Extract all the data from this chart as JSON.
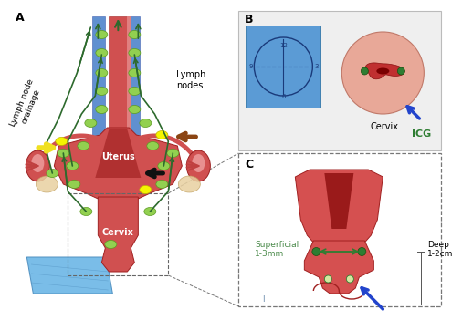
{
  "bg_color": "#ffffff",
  "blue_sq_color": "#5b9bd5",
  "cervix_outer_color": "#e8a898",
  "cervix_inner_color": "#c84040",
  "uterus_red": "#d05050",
  "uterus_dark_red": "#c03030",
  "uterus_light_red": "#e08080",
  "lymph_green": "#92d050",
  "lymph_green_dark": "#5a9a20",
  "arrow_green": "#2d6a2d",
  "arrow_yellow": "#f0e020",
  "arrow_brown": "#8b4513",
  "arrow_black": "#111111",
  "needle_blue": "#2244cc",
  "text_black": "#000000",
  "icg_green": "#2e7d32",
  "superficial_green": "#4a8a4a",
  "blue_plate": "#7abde8",
  "blue_plate_dark": "#5090c0",
  "panel_b_bg": "#e8e8e8",
  "yellow_node": "#f5f500",
  "panel_a_label": "A",
  "panel_b_label": "B",
  "panel_c_label": "C",
  "uterus_label": "Uterus",
  "cervix_label": "Cervix",
  "lymph_nodes_label": "Lymph\nnodes",
  "lymph_drain_label": "Lymph node\ndrainage",
  "icg_label": "ICG",
  "superficial_label": "Superficial\n1-3mm",
  "deep_label": "Deep\n1-2cm",
  "panel_b_clock_labels": [
    "12",
    "3",
    "6",
    "9"
  ]
}
